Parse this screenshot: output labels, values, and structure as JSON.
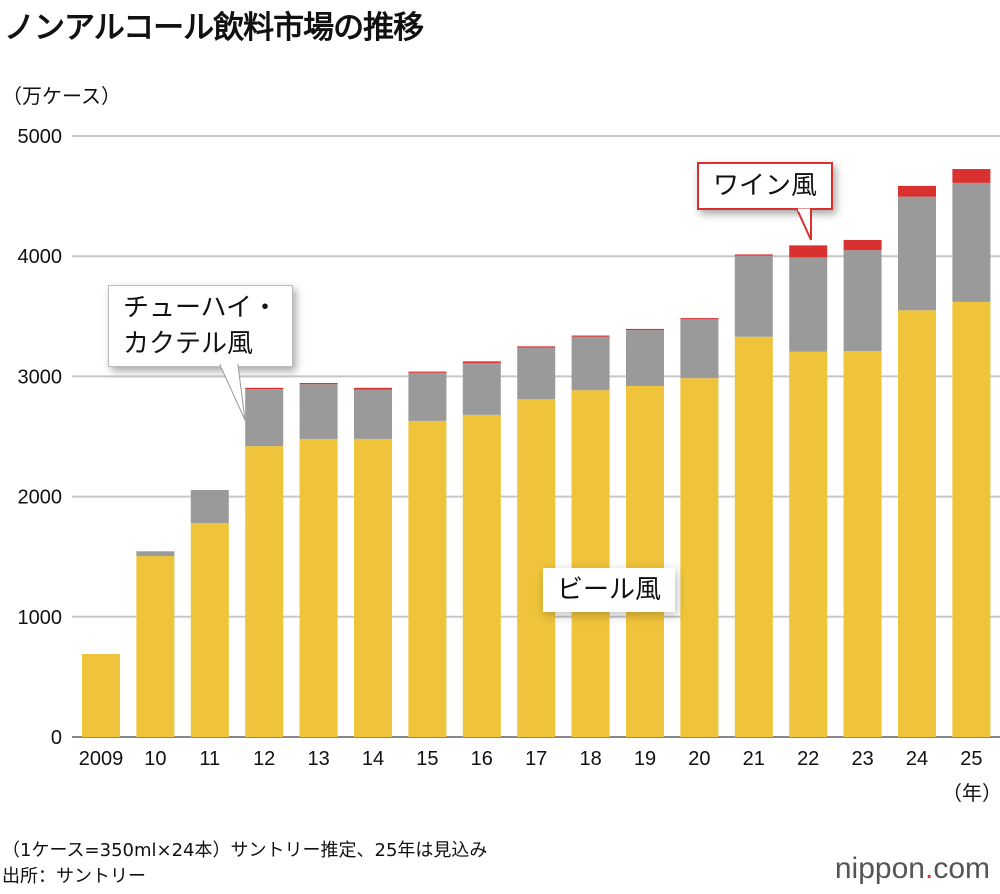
{
  "title": "ノンアルコール飲料市場の推移",
  "unit_label": "（万ケース）",
  "note": "（1ケース=350ml×24本）サントリー推定、25年は見込み",
  "source": "出所：サントリー",
  "logo": {
    "name": "nippon",
    "dot": ".",
    "suffix": "com"
  },
  "chart_data": {
    "type": "bar",
    "stacked": true,
    "title": "ノンアルコール飲料市場の推移",
    "ylabel": "（万ケース）",
    "xlabel": "（年）",
    "ylim": [
      0,
      5000
    ],
    "yticks": [
      "0",
      "1000",
      "2000",
      "3000",
      "4000",
      "5000"
    ],
    "grid": true,
    "categories": [
      "2009",
      "10",
      "11",
      "12",
      "13",
      "14",
      "15",
      "16",
      "17",
      "18",
      "19",
      "20",
      "21",
      "22",
      "23",
      "24",
      "25"
    ],
    "series": [
      {
        "name": "ビール風",
        "color": "#f0c43a",
        "values": [
          690,
          1505,
          1780,
          2420,
          2480,
          2480,
          2630,
          2680,
          2810,
          2885,
          2920,
          2985,
          3330,
          3205,
          3210,
          3550,
          3620
        ]
      },
      {
        "name": "チューハイ・カクテル風",
        "color": "#9a9a9a",
        "values": [
          0,
          40,
          275,
          475,
          455,
          410,
          400,
          430,
          430,
          445,
          465,
          490,
          675,
          785,
          840,
          945,
          990
        ]
      },
      {
        "name": "ワイン風",
        "color": "#d93030",
        "values": [
          0,
          0,
          0,
          10,
          10,
          15,
          10,
          15,
          10,
          10,
          10,
          10,
          10,
          100,
          85,
          90,
          115
        ]
      }
    ],
    "callouts": {
      "beer": "ビール風",
      "chuhai_line1": "チューハイ・",
      "chuhai_line2": "カクテル風",
      "wine": "ワイン風"
    }
  }
}
